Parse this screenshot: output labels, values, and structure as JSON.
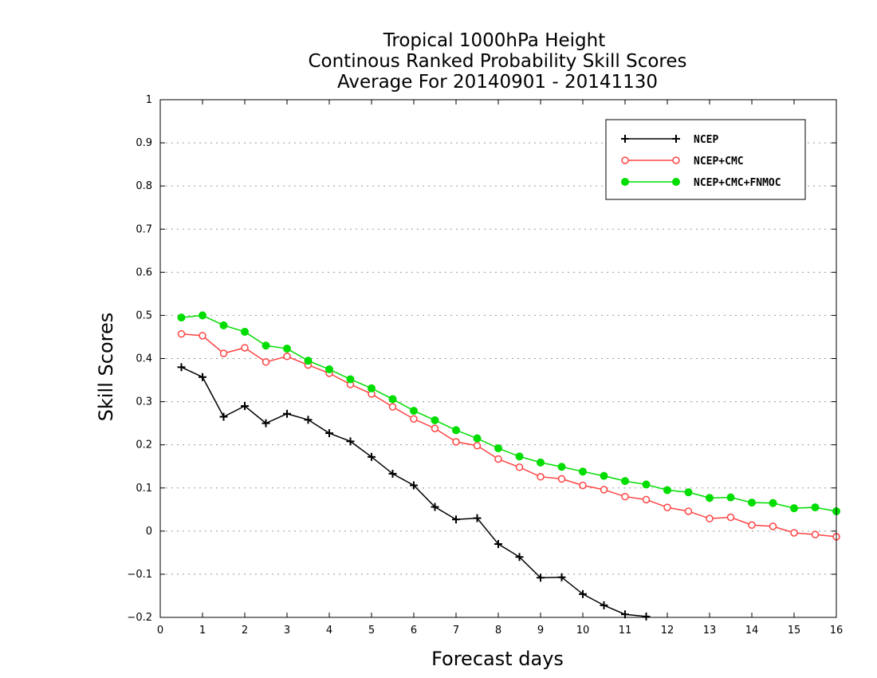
{
  "chart_data": {
    "type": "line",
    "title": [
      "Tropical 1000hPa Height",
      "Continous Ranked Probability Skill Scores",
      "Average For 20140901 - 20141130"
    ],
    "xlabel": "Forecast days",
    "ylabel": "Skill Scores",
    "xlim": [
      0,
      16
    ],
    "ylim": [
      -0.2,
      1
    ],
    "xticks": [
      "0",
      "1",
      "2",
      "3",
      "4",
      "5",
      "6",
      "7",
      "8",
      "9",
      "10",
      "11",
      "12",
      "13",
      "14",
      "15",
      "16"
    ],
    "yticks": [
      "−0.2",
      "−0.1",
      "0",
      "0.1",
      "0.2",
      "0.3",
      "0.4",
      "0.5",
      "0.6",
      "0.7",
      "0.8",
      "0.9",
      "1"
    ],
    "grid": "horizontal dotted",
    "legend_position": "top-right",
    "x": [
      0.5,
      1,
      1.5,
      2,
      2.5,
      3,
      3.5,
      4,
      4.5,
      5,
      5.5,
      6,
      6.5,
      7,
      7.5,
      8,
      8.5,
      9,
      9.5,
      10,
      10.5,
      11,
      11.5,
      12,
      12.5,
      13,
      13.5,
      14,
      14.5,
      15,
      15.5,
      16
    ],
    "series": [
      {
        "name": "NCEP",
        "color": "#000000",
        "marker": "plus",
        "values": [
          0.38,
          0.357,
          0.265,
          0.29,
          0.25,
          0.272,
          0.258,
          0.227,
          0.208,
          0.172,
          0.133,
          0.106,
          0.056,
          0.027,
          0.03,
          -0.03,
          -0.06,
          -0.108,
          -0.107,
          -0.146,
          -0.172,
          -0.193,
          -0.198,
          null,
          null,
          null,
          null,
          null,
          null,
          null,
          null,
          null
        ]
      },
      {
        "name": "NCEP+CMC",
        "color": "#ff4444",
        "marker": "open-circle",
        "values": [
          0.457,
          0.453,
          0.412,
          0.425,
          0.392,
          0.405,
          0.385,
          0.366,
          0.34,
          0.318,
          0.288,
          0.26,
          0.238,
          0.207,
          0.198,
          0.167,
          0.148,
          0.126,
          0.121,
          0.106,
          0.096,
          0.08,
          0.073,
          0.055,
          0.046,
          0.029,
          0.032,
          0.014,
          0.011,
          -0.004,
          -0.008,
          -0.013
        ]
      },
      {
        "name": "NCEP+CMC+FNMOC",
        "color": "#00dd00",
        "marker": "filled-circle",
        "values": [
          0.495,
          0.5,
          0.477,
          0.462,
          0.43,
          0.423,
          0.395,
          0.375,
          0.352,
          0.331,
          0.306,
          0.279,
          0.257,
          0.234,
          0.215,
          0.192,
          0.173,
          0.159,
          0.149,
          0.138,
          0.128,
          0.116,
          0.108,
          0.095,
          0.09,
          0.077,
          0.078,
          0.066,
          0.065,
          0.053,
          0.055,
          0.046
        ]
      }
    ]
  }
}
